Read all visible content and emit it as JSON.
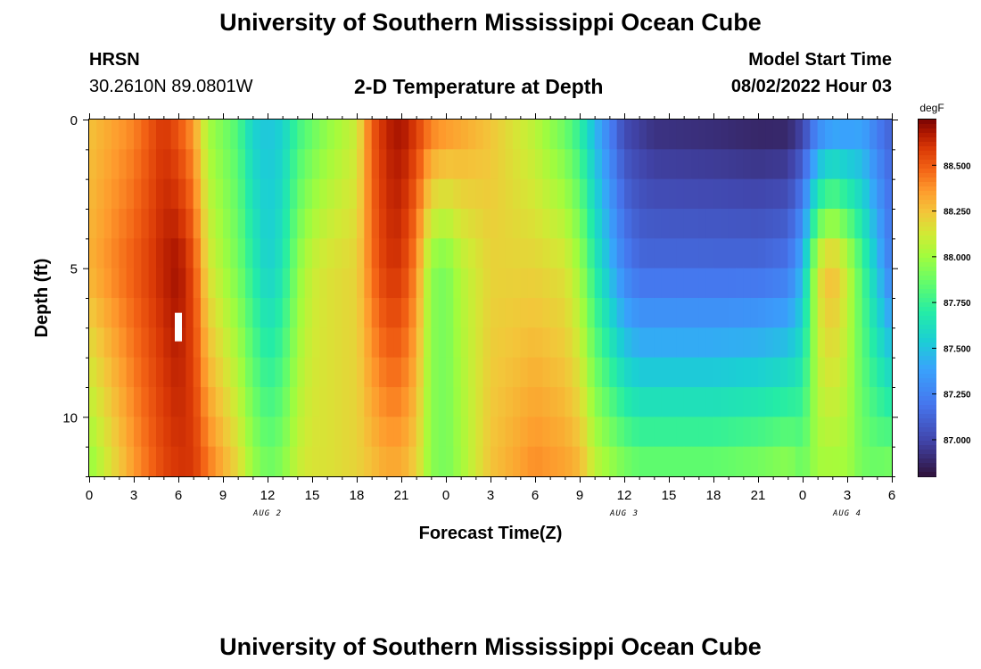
{
  "header": {
    "title": "University of Southern Mississippi Ocean Cube",
    "station": "HRSN",
    "coords": "30.2610N  89.0801W",
    "plot_title": "2-D Temperature at Depth",
    "model_start_label": "Model Start Time",
    "model_start_value": "08/02/2022 Hour 03"
  },
  "footer": {
    "title": "University of Southern Mississippi Ocean Cube"
  },
  "chart_data": {
    "type": "heatmap",
    "title": "2-D Temperature at Depth",
    "xlabel": "Forecast Time(Z)",
    "ylabel": "Depth (ft)",
    "colorbar_unit": "degF",
    "x_ticks": [
      "0",
      "3",
      "6",
      "9",
      "12",
      "15",
      "18",
      "21",
      "0",
      "3",
      "6",
      "9",
      "12",
      "15",
      "18",
      "21",
      "0",
      "3",
      "6"
    ],
    "date_labels": [
      {
        "text": "AUG 2",
        "hour_index": 12
      },
      {
        "text": "AUG 3",
        "hour_index": 36
      },
      {
        "text": "AUG 4",
        "hour_index": 51
      }
    ],
    "y_ticks": [
      0,
      5,
      10
    ],
    "ylim": [
      0,
      12
    ],
    "colorbar_ticks": [
      "88.500",
      "88.250",
      "88.000",
      "87.750",
      "87.500",
      "87.250",
      "87.000"
    ],
    "vmin": 86.8,
    "vmax": 88.75,
    "time_marker_hour": 6,
    "depths": [
      0,
      1,
      2,
      3,
      4,
      5,
      6,
      7,
      8,
      9,
      10,
      11,
      12
    ],
    "hours": [
      0,
      3,
      5,
      6,
      7,
      8,
      10,
      11,
      12,
      13,
      14,
      15,
      16,
      18,
      19,
      20,
      21,
      22,
      23,
      24,
      25,
      27,
      30,
      32,
      33,
      34,
      36,
      37,
      38,
      42,
      45,
      47,
      48,
      49,
      50,
      51,
      52,
      53,
      54
    ],
    "surface": [
      88.25,
      88.4,
      88.6,
      88.5,
      88.35,
      88.0,
      87.8,
      87.55,
      87.5,
      87.55,
      87.75,
      87.85,
      87.95,
      88.1,
      88.5,
      88.65,
      88.7,
      88.6,
      88.45,
      88.4,
      88.35,
      88.25,
      88.05,
      87.85,
      87.7,
      87.45,
      87.0,
      86.95,
      86.9,
      86.88,
      86.85,
      86.85,
      86.95,
      87.2,
      87.3,
      87.3,
      87.35,
      87.2,
      87.1
    ],
    "mid": [
      88.3,
      88.5,
      88.65,
      88.7,
      88.55,
      88.15,
      87.9,
      87.7,
      87.55,
      87.65,
      87.95,
      88.1,
      88.15,
      88.2,
      88.45,
      88.6,
      88.6,
      88.4,
      87.95,
      87.9,
      88.05,
      88.2,
      88.2,
      88.15,
      88.0,
      87.7,
      87.25,
      87.15,
      87.15,
      87.15,
      87.15,
      87.2,
      87.45,
      88.15,
      88.3,
      88.1,
      87.8,
      87.5,
      87.2
    ],
    "bottom": [
      87.95,
      88.35,
      88.55,
      88.6,
      88.6,
      88.45,
      88.2,
      88.0,
      87.9,
      87.95,
      88.1,
      88.15,
      88.15,
      88.2,
      88.25,
      88.3,
      88.3,
      88.2,
      87.95,
      87.9,
      88.0,
      88.25,
      88.4,
      88.35,
      88.3,
      88.1,
      87.95,
      87.9,
      87.9,
      87.9,
      87.95,
      88.0,
      87.9,
      88.0,
      88.0,
      88.0,
      87.9,
      87.9,
      87.95
    ]
  }
}
